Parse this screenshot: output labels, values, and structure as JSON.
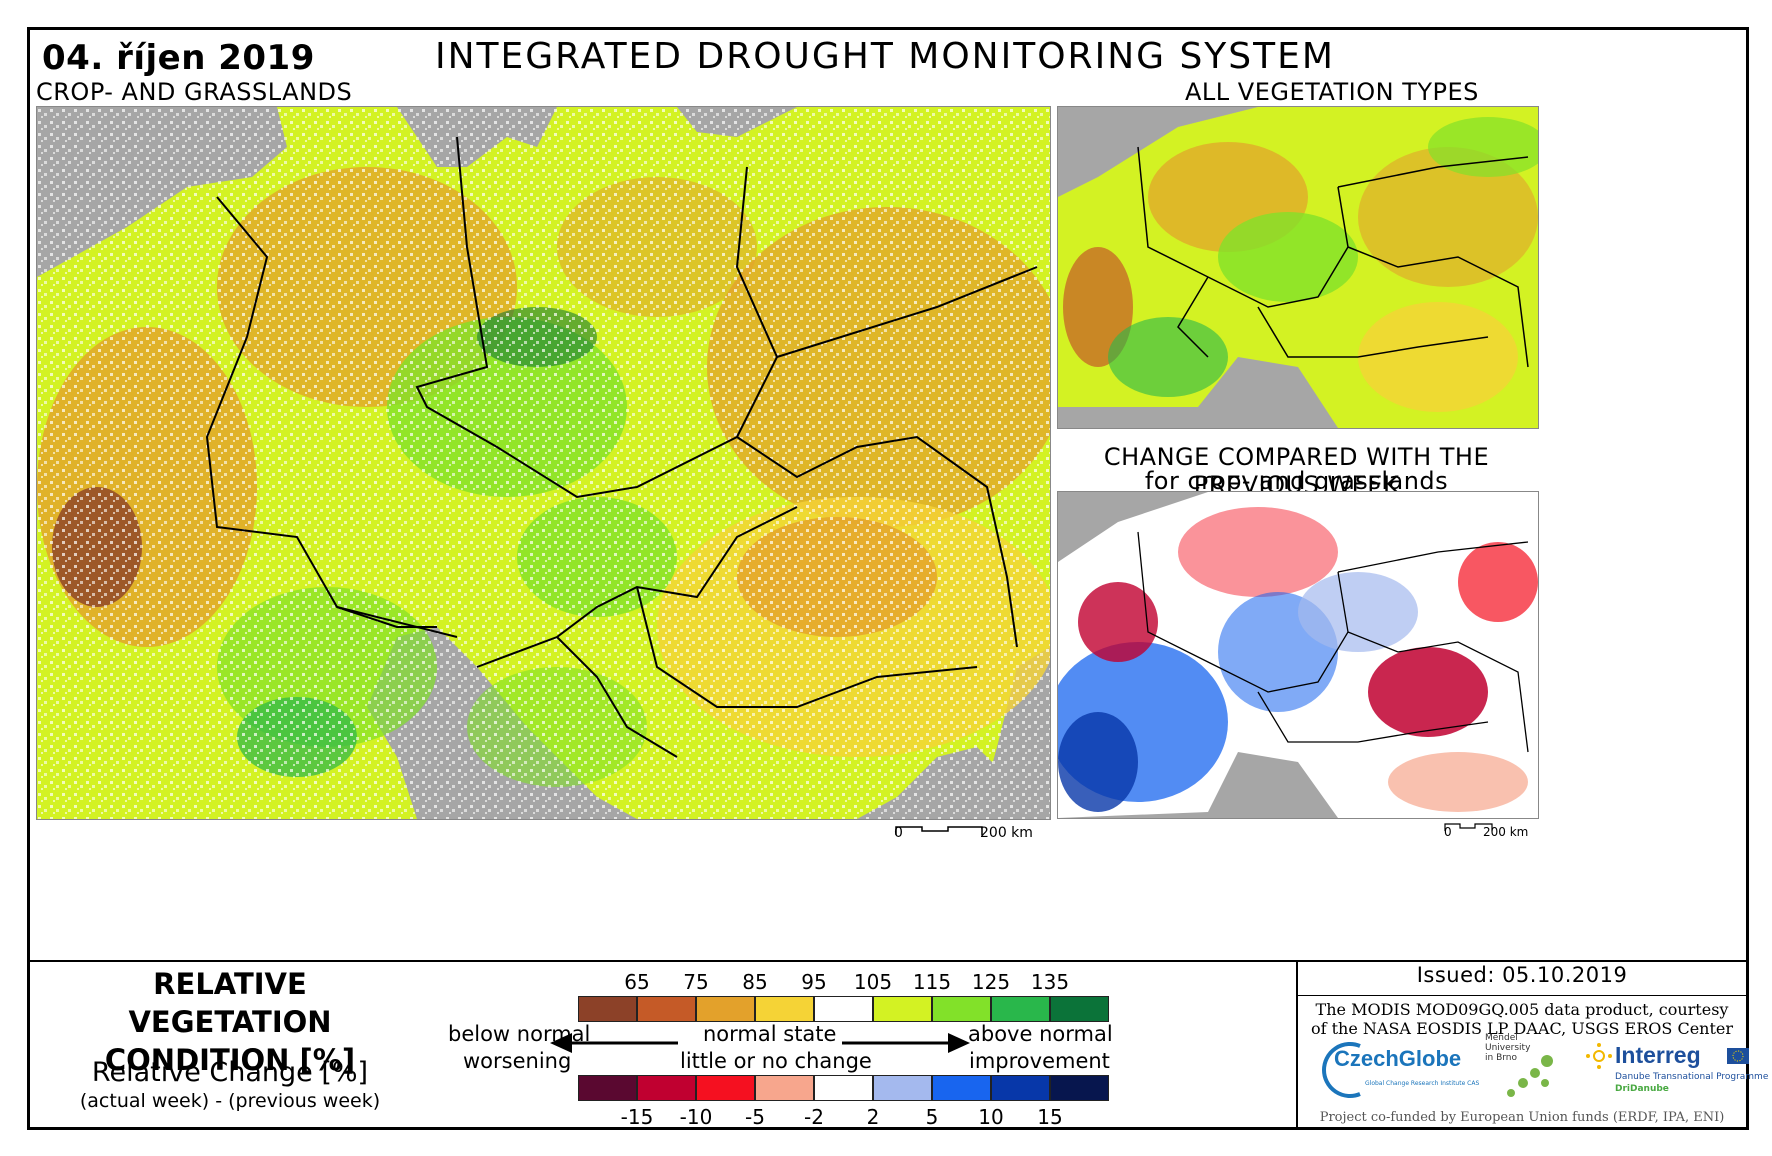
{
  "header": {
    "date": "04. říjen 2019",
    "title": "INTEGRATED DROUGHT MONITORING SYSTEM"
  },
  "maps": {
    "main_label": "CROP- AND GRASSLANDS",
    "all_label": "ALL VEGETATION TYPES",
    "change_label_1": "CHANGE COMPARED WITH THE PREVIOUS WEEK",
    "change_label_2": "for crop- and grasslands",
    "scale_zero": "0",
    "scale_km": "200 km",
    "colors": {
      "background": "#a6a6a6",
      "borders": "#000000"
    }
  },
  "legend": {
    "title_1": "RELATIVE VEGETATION",
    "title_2": "CONDITION [%]",
    "change_title": "Relative Change [%]",
    "change_sub": "(actual week) - (previous week)",
    "condition_ticks": [
      "65",
      "75",
      "85",
      "95",
      "105",
      "115",
      "125",
      "135"
    ],
    "condition_colors": [
      "#8c4128",
      "#c55a27",
      "#e3a12b",
      "#f5d336",
      "#ffffff",
      "#d3f223",
      "#82e129",
      "#29b74b",
      "#0b7339"
    ],
    "change_ticks": [
      "-15",
      "-10",
      "-5",
      "-2",
      "2",
      "5",
      "10",
      "15"
    ],
    "change_colors": [
      "#5a0830",
      "#c00030",
      "#f51020",
      "#f7a68d",
      "#ffffff",
      "#a4b9ee",
      "#1865ef",
      "#0737a9",
      "#07164e"
    ],
    "below_normal": "below normal",
    "worsening": "worsening",
    "normal_state": "normal state",
    "little_change": "little or no change",
    "above_normal": "above normal",
    "improvement": "improvement"
  },
  "footer": {
    "issued": "Issued: 05.10.2019",
    "credit_1": "The MODIS MOD09GQ.005 data product, courtesy",
    "credit_2": "of the NASA EOSDIS LP DAAC, USGS EROS Center",
    "funded": "Project co-funded by European Union funds (ERDF, IPA, ENI)",
    "logo_czechglobe": "CzechGlobe",
    "logo_czechglobe_tag": "Global Change Research Institute CAS",
    "logo_mendel": "Mendel University in Brno",
    "logo_interreg": "Interreg",
    "logo_interreg_programme": "Danube Transnational Programme",
    "logo_interreg_project": "DriDanube"
  }
}
